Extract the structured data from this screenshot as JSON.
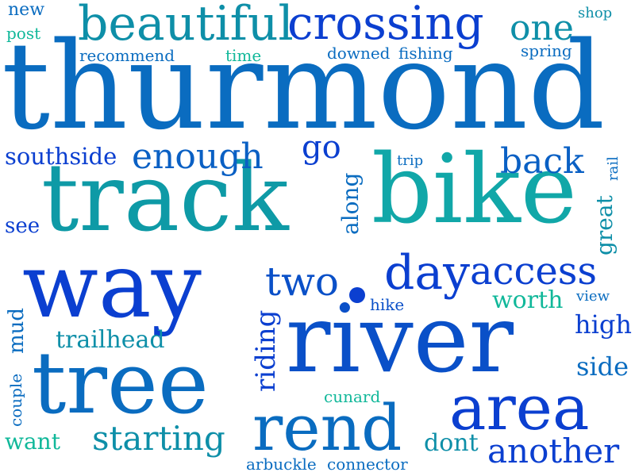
{
  "words": {
    "thurmond": {
      "text": "thurmond",
      "color": "#0a6cc0"
    },
    "track": {
      "text": "track",
      "color": "#0e9aa6"
    },
    "bike": {
      "text": "bike",
      "color": "#11a7a8"
    },
    "way": {
      "text": "way",
      "color": "#0b3fd0"
    },
    "river": {
      "text": "river",
      "color": "#0a50c8"
    },
    "tree": {
      "text": "tree",
      "color": "#0a6cc0"
    },
    "beautiful": {
      "text": "beautiful",
      "color": "#0e8fa8"
    },
    "crossing": {
      "text": "crossing",
      "color": "#0b3fd0"
    },
    "area": {
      "text": "area",
      "color": "#0b3fd0"
    },
    "rend": {
      "text": "rend",
      "color": "#0a6cc0"
    },
    "access": {
      "text": "access",
      "color": "#0b3fd0"
    },
    "day": {
      "text": "day",
      "color": "#0b3fd0"
    },
    "two": {
      "text": "two",
      "color": "#0a50c8"
    },
    "another": {
      "text": "another",
      "color": "#0b3fd0"
    },
    "starting": {
      "text": "starting",
      "color": "#0e8fa8"
    },
    "enough": {
      "text": "enough",
      "color": "#0a60c4"
    },
    "one": {
      "text": "one",
      "color": "#0e8fa8"
    },
    "back": {
      "text": "back",
      "color": "#0a60c4"
    },
    "southside": {
      "text": "southside",
      "color": "#0b3fd0"
    },
    "go": {
      "text": "go",
      "color": "#0b3fd0"
    },
    "riding": {
      "text": "riding",
      "color": "#0b3fd0"
    },
    "trailhead": {
      "text": "trailhead",
      "color": "#0e8fa8"
    },
    "worth": {
      "text": "worth",
      "color": "#11b89a"
    },
    "high": {
      "text": "high",
      "color": "#0b3fd0"
    },
    "side": {
      "text": "side",
      "color": "#0a6cc0"
    },
    "want": {
      "text": "want",
      "color": "#11b89a"
    },
    "dont": {
      "text": "dont",
      "color": "#0e8fa8"
    },
    "along": {
      "text": "along",
      "color": "#0a6cc0"
    },
    "great": {
      "text": "great",
      "color": "#0e8fa8"
    },
    "mud": {
      "text": "mud",
      "color": "#0a6cc0"
    },
    "see": {
      "text": "see",
      "color": "#0b3fd0"
    },
    "new": {
      "text": "new",
      "color": "#0a6cc0"
    },
    "post": {
      "text": "post",
      "color": "#11b89a"
    },
    "recommend": {
      "text": "recommend",
      "color": "#0a6cc0"
    },
    "time": {
      "text": "time",
      "color": "#11b89a"
    },
    "downed": {
      "text": "downed",
      "color": "#0a6cc0"
    },
    "fishing": {
      "text": "fishing",
      "color": "#0a6cc0"
    },
    "spring": {
      "text": "spring",
      "color": "#0a6cc0"
    },
    "shop": {
      "text": "shop",
      "color": "#0e8fa8"
    },
    "trip": {
      "text": "trip",
      "color": "#0a6cc0"
    },
    "rail": {
      "text": "rail",
      "color": "#0a6cc0"
    },
    "hike": {
      "text": "hike",
      "color": "#0a50c8"
    },
    "view": {
      "text": "view",
      "color": "#0a6cc0"
    },
    "cunard": {
      "text": "cunard",
      "color": "#11b89a"
    },
    "couple": {
      "text": "couple",
      "color": "#0a6cc0"
    },
    "arbuckle": {
      "text": "arbuckle",
      "color": "#0a6cc0"
    },
    "connector": {
      "text": "connector",
      "color": "#0a6cc0"
    }
  },
  "dot_color": "#0b3fd0"
}
